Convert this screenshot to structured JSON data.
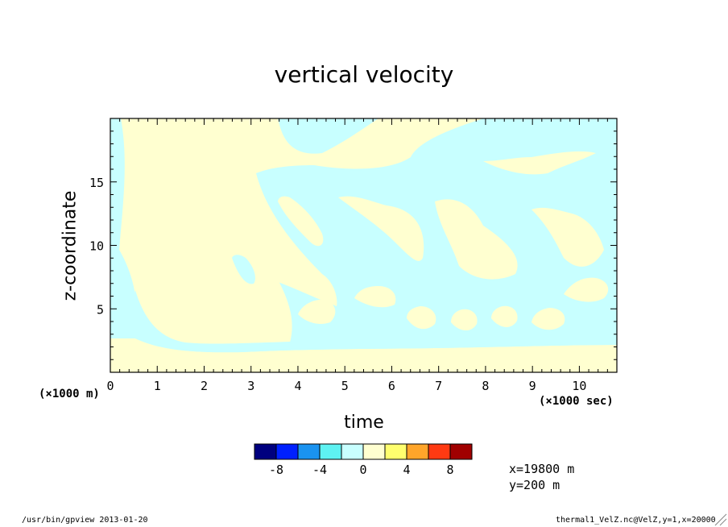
{
  "chart_data": {
    "type": "heatmap",
    "title": "vertical velocity",
    "xlabel": "time",
    "ylabel": "z-coordinate",
    "x_unit_label": "(×1000 sec)",
    "y_unit_label": "(×1000 m)",
    "xlim": [
      0,
      10.8
    ],
    "ylim": [
      0,
      20
    ],
    "x_ticks": [
      0,
      1,
      2,
      3,
      4,
      5,
      6,
      7,
      8,
      9,
      10
    ],
    "y_ticks": [
      5,
      10,
      15
    ],
    "colorbar": {
      "levels": [
        -10,
        -8,
        -6,
        -4,
        -2,
        0,
        2,
        4,
        6,
        8,
        10
      ],
      "tick_labels": [
        "-8",
        "-4",
        "0",
        "4",
        "8"
      ],
      "tick_values": [
        -8,
        -4,
        0,
        4,
        8
      ],
      "colors": [
        "#00007f",
        "#0020ff",
        "#1a93f0",
        "#5ef2f2",
        "#c8ffff",
        "#ffffd0",
        "#ffff6e",
        "#ffa52a",
        "#ff3a12",
        "#a00000"
      ]
    },
    "dominant_levels": [
      {
        "range": [
          -2,
          0
        ],
        "color": "#c8ffff"
      },
      {
        "range": [
          0,
          2
        ],
        "color": "#ffffd0"
      }
    ]
  },
  "annotations": {
    "x_position": "x=19800 m",
    "y_position": "y=200 m"
  },
  "footer": {
    "left": "/usr/bin/gpview  2013-01-20",
    "right": "thermal1_VelZ.nc@VelZ,y=1,x=20000"
  }
}
